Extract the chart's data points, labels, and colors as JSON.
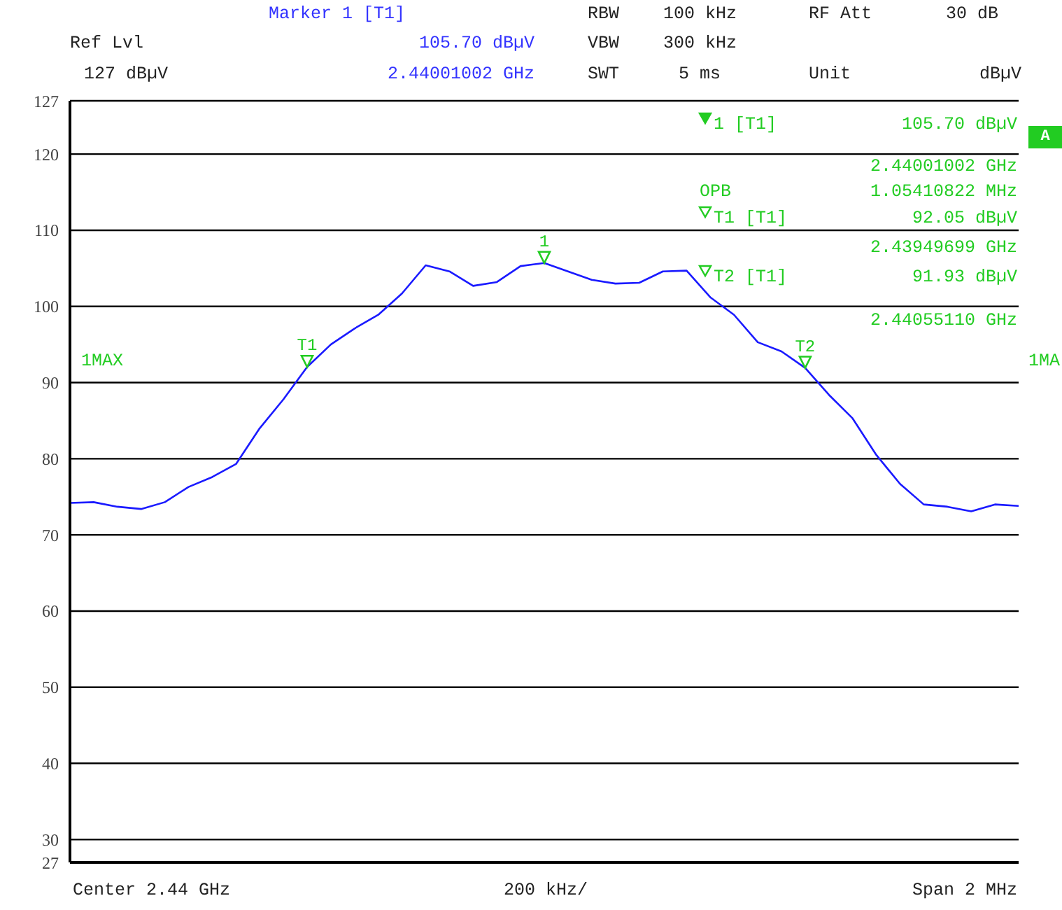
{
  "chart_data": {
    "type": "line",
    "categories": [
      null,
      null,
      null,
      null,
      null,
      null,
      null,
      null,
      null,
      null,
      null,
      null,
      null,
      null,
      null,
      null,
      null,
      null,
      null,
      null,
      null,
      null,
      null,
      null,
      null,
      null,
      null,
      null,
      null,
      null,
      null,
      null,
      null,
      null,
      null,
      null,
      null,
      null,
      null,
      null,
      null
    ],
    "ylim": [
      27,
      127
    ],
    "yticks": [
      27,
      30,
      40,
      50,
      60,
      70,
      80,
      90,
      100,
      110,
      120,
      127
    ],
    "grid": true,
    "tick_labels": "y",
    "series": [
      {
        "color": "#1a1aff",
        "values": [
          74.2,
          74.3,
          73.7,
          73.4,
          74.3,
          76.3,
          77.6,
          79.3,
          84.0,
          87.8,
          92.05,
          95.0,
          97.1,
          98.9,
          101.7,
          105.4,
          104.6,
          102.7,
          103.2,
          105.3,
          105.7,
          104.6,
          103.5,
          103.0,
          103.1,
          104.6,
          104.7,
          101.2,
          98.9,
          95.3,
          94.1,
          91.93,
          88.4,
          85.3,
          80.5,
          76.7,
          74.0,
          73.7,
          73.1,
          74.0,
          73.8
        ]
      }
    ],
    "annotations": [
      "Marker 1 [T1]",
      "RBW",
      "100 kHz",
      "RF Att",
      "30 dB",
      "Ref Lvl",
      "105.70 dBµV",
      "VBW",
      "300 kHz",
      "127 dBµV",
      "2.44001002 GHz",
      "SWT",
      "5 ms",
      "Unit",
      "dBµV",
      "1 [T1]",
      "105.70 dBµV",
      "2.44001002 GHz",
      "OPB",
      "1.05410822 MHz",
      "T1 [T1]",
      "92.05 dBµV",
      "2.43949699 GHz",
      "T2 [T1]",
      "91.93 dBµV",
      "2.44055110 GHz",
      "1MAX",
      "1MA",
      "A",
      "Center 2.44 GHz",
      "200 kHz/",
      "Span 2 MHz",
      {
        "text": "T1",
        "y": 92.05
      },
      {
        "text": "1",
        "y": 105.7
      },
      {
        "text": "T2",
        "y": 91.93
      }
    ]
  }
}
